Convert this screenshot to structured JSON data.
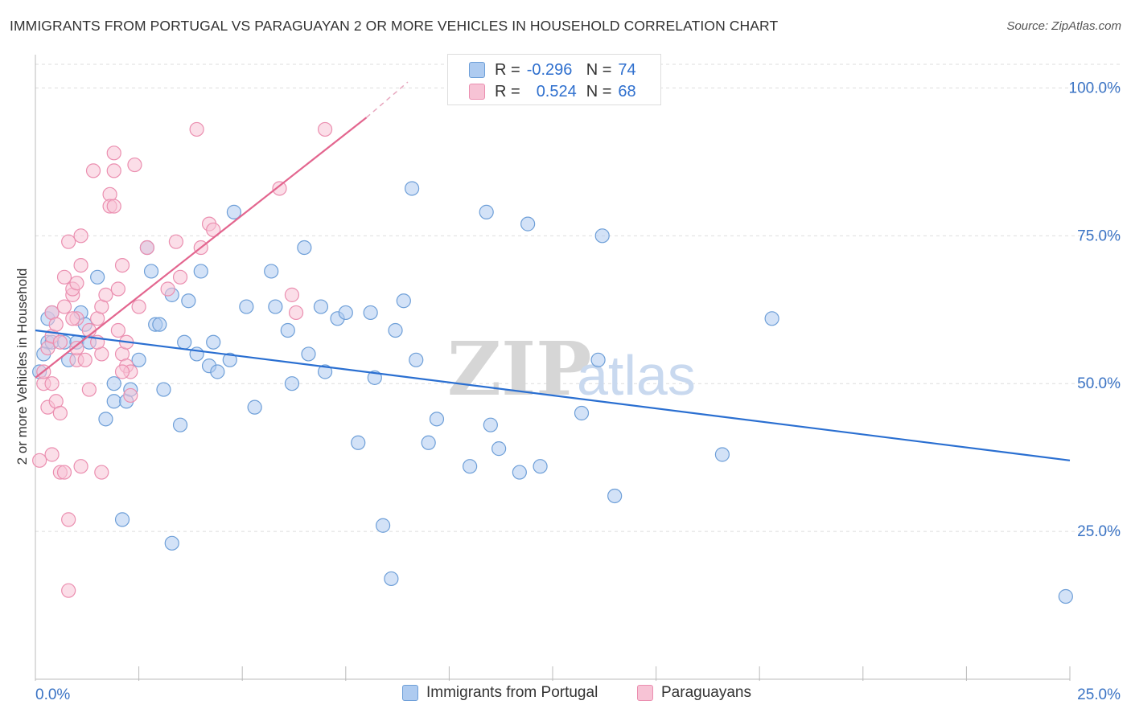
{
  "title": "IMMIGRANTS FROM PORTUGAL VS PARAGUAYAN 2 OR MORE VEHICLES IN HOUSEHOLD CORRELATION CHART",
  "source": "Source: ZipAtlas.com",
  "watermark": {
    "zip": "ZIP",
    "atlas": "atlas"
  },
  "legend": {
    "rows": [
      {
        "r_label": "R =",
        "r_value": "-0.296",
        "n_label": "N =",
        "n_value": "74"
      },
      {
        "r_label": "R =",
        "r_value": "0.524",
        "n_label": "N =",
        "n_value": "68"
      }
    ]
  },
  "bottom_legend": [
    "Immigrants from Portugal",
    "Paraguayans"
  ],
  "colors": {
    "blue_fill": "#aecbf0",
    "blue_stroke": "#6e9fd8",
    "blue_line": "#2a6fd1",
    "pink_fill": "#f7c3d5",
    "pink_stroke": "#eb8fb0",
    "pink_line": "#e3668f",
    "axis_text": "#3a73c4",
    "grid": "#dddddd"
  },
  "chart_data": {
    "type": "scatter",
    "title": "IMMIGRANTS FROM PORTUGAL VS PARAGUAYAN 2 OR MORE VEHICLES IN HOUSEHOLD CORRELATION CHART",
    "xlabel": "",
    "ylabel": "2 or more Vehicles in Household",
    "xlim": [
      0,
      25
    ],
    "ylim": [
      0,
      104
    ],
    "x_tick_labels": [
      "0.0%",
      "25.0%"
    ],
    "y_ticks": [
      25,
      50,
      75,
      100
    ],
    "y_tick_labels": [
      "25.0%",
      "50.0%",
      "75.0%",
      "100.0%"
    ],
    "grid": true,
    "legend_position": "top-center",
    "series": [
      {
        "name": "Immigrants from Portugal",
        "color": "#aecbf0",
        "trend": {
          "x": [
            0,
            25
          ],
          "y": [
            59,
            37
          ]
        },
        "points": [
          [
            0.3,
            61
          ],
          [
            0.3,
            57
          ],
          [
            0.4,
            57
          ],
          [
            0.4,
            62
          ],
          [
            0.7,
            57
          ],
          [
            0.8,
            54
          ],
          [
            1.0,
            57
          ],
          [
            1.1,
            62
          ],
          [
            1.2,
            60
          ],
          [
            1.3,
            57
          ],
          [
            1.5,
            68
          ],
          [
            1.7,
            44
          ],
          [
            1.9,
            50
          ],
          [
            1.9,
            47
          ],
          [
            2.1,
            27
          ],
          [
            2.2,
            47
          ],
          [
            2.3,
            49
          ],
          [
            2.5,
            54
          ],
          [
            2.7,
            73
          ],
          [
            2.8,
            69
          ],
          [
            2.9,
            60
          ],
          [
            3.0,
            60
          ],
          [
            3.1,
            49
          ],
          [
            3.3,
            23
          ],
          [
            3.3,
            65
          ],
          [
            3.5,
            43
          ],
          [
            3.6,
            57
          ],
          [
            3.7,
            64
          ],
          [
            3.9,
            55
          ],
          [
            4.0,
            69
          ],
          [
            4.2,
            53
          ],
          [
            4.3,
            57
          ],
          [
            4.4,
            52
          ],
          [
            4.7,
            54
          ],
          [
            4.8,
            79
          ],
          [
            5.1,
            63
          ],
          [
            5.3,
            46
          ],
          [
            5.7,
            69
          ],
          [
            5.8,
            63
          ],
          [
            6.1,
            59
          ],
          [
            6.2,
            50
          ],
          [
            6.5,
            73
          ],
          [
            6.6,
            55
          ],
          [
            6.9,
            63
          ],
          [
            7.0,
            52
          ],
          [
            7.3,
            61
          ],
          [
            7.5,
            62
          ],
          [
            7.8,
            40
          ],
          [
            8.1,
            62
          ],
          [
            8.2,
            51
          ],
          [
            8.4,
            26
          ],
          [
            8.6,
            17
          ],
          [
            8.7,
            59
          ],
          [
            8.9,
            64
          ],
          [
            9.1,
            83
          ],
          [
            9.2,
            54
          ],
          [
            9.5,
            40
          ],
          [
            9.7,
            44
          ],
          [
            10.5,
            36
          ],
          [
            10.9,
            79
          ],
          [
            11.0,
            43
          ],
          [
            11.2,
            39
          ],
          [
            11.7,
            35
          ],
          [
            11.9,
            77
          ],
          [
            12.2,
            36
          ],
          [
            13.2,
            45
          ],
          [
            13.6,
            54
          ],
          [
            13.7,
            75
          ],
          [
            14.0,
            31
          ],
          [
            16.6,
            38
          ],
          [
            17.8,
            61
          ],
          [
            24.9,
            14
          ],
          [
            0.1,
            52
          ],
          [
            0.2,
            55
          ]
        ]
      },
      {
        "name": "Paraguayans",
        "color": "#f7c3d5",
        "trend": {
          "x": [
            0,
            8
          ],
          "y": [
            51,
            95
          ]
        },
        "trend_dashed": {
          "x": [
            8,
            9
          ],
          "y": [
            95,
            101
          ]
        },
        "points": [
          [
            0.1,
            37
          ],
          [
            0.2,
            50
          ],
          [
            0.2,
            52
          ],
          [
            0.3,
            56
          ],
          [
            0.3,
            46
          ],
          [
            0.4,
            62
          ],
          [
            0.4,
            58
          ],
          [
            0.4,
            50
          ],
          [
            0.4,
            38
          ],
          [
            0.5,
            60
          ],
          [
            0.5,
            47
          ],
          [
            0.6,
            35
          ],
          [
            0.6,
            45
          ],
          [
            0.6,
            57
          ],
          [
            0.7,
            35
          ],
          [
            0.7,
            68
          ],
          [
            0.7,
            63
          ],
          [
            0.8,
            27
          ],
          [
            0.8,
            15
          ],
          [
            0.8,
            74
          ],
          [
            0.9,
            65
          ],
          [
            0.9,
            66
          ],
          [
            1.0,
            61
          ],
          [
            1.0,
            54
          ],
          [
            1.0,
            56
          ],
          [
            1.0,
            67
          ],
          [
            1.1,
            36
          ],
          [
            1.1,
            70
          ],
          [
            1.1,
            75
          ],
          [
            1.2,
            54
          ],
          [
            1.3,
            59
          ],
          [
            1.3,
            49
          ],
          [
            1.4,
            86
          ],
          [
            1.5,
            61
          ],
          [
            1.6,
            55
          ],
          [
            1.6,
            35
          ],
          [
            1.6,
            63
          ],
          [
            1.7,
            65
          ],
          [
            1.8,
            82
          ],
          [
            1.8,
            80
          ],
          [
            1.9,
            80
          ],
          [
            1.9,
            89
          ],
          [
            1.9,
            86
          ],
          [
            2.0,
            59
          ],
          [
            2.0,
            66
          ],
          [
            2.1,
            70
          ],
          [
            2.1,
            55
          ],
          [
            2.2,
            53
          ],
          [
            2.3,
            48
          ],
          [
            2.3,
            52
          ],
          [
            2.4,
            87
          ],
          [
            2.5,
            63
          ],
          [
            2.7,
            73
          ],
          [
            3.2,
            66
          ],
          [
            3.4,
            74
          ],
          [
            3.5,
            68
          ],
          [
            3.9,
            93
          ],
          [
            4.0,
            73
          ],
          [
            4.2,
            77
          ],
          [
            4.3,
            76
          ],
          [
            5.9,
            83
          ],
          [
            6.2,
            65
          ],
          [
            6.3,
            62
          ],
          [
            7.0,
            93
          ],
          [
            2.2,
            57
          ],
          [
            0.9,
            61
          ],
          [
            1.5,
            57
          ],
          [
            2.1,
            52
          ]
        ]
      }
    ]
  }
}
